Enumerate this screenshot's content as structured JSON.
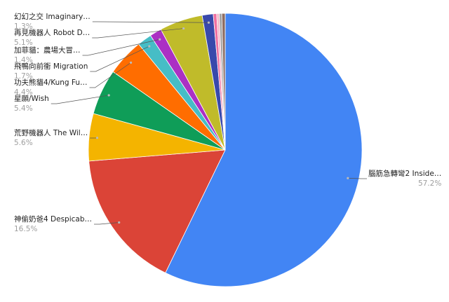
{
  "chart_data": {
    "type": "pie",
    "categories": [
      "腦筋急轉彎2 Inside…",
      "神偷奶爸4 Despicab…",
      "荒野機器人 The Wil…",
      "星願/Wish",
      "功夫熊貓4/Kung Fu…",
      "飛鴨向前衝 Migration",
      "加菲貓：農場大冒…",
      "再見機器人 Robot D…",
      "幻幻之交 Imaginary…",
      null,
      null,
      null,
      null
    ],
    "values": [
      57.2,
      16.5,
      5.6,
      5.4,
      4.4,
      1.7,
      1.4,
      5.1,
      1.3,
      0.4,
      0.3,
      0.3,
      0.4
    ],
    "value_labels": [
      "57.2%",
      "16.5%",
      "5.6%",
      "5.4%",
      "4.4%",
      "1.7%",
      "1.4%",
      "5.1%",
      "1.3%",
      null,
      null,
      null,
      null
    ],
    "colors": [
      "#4285f4",
      "#db4437",
      "#f4b400",
      "#0f9d58",
      "#ff6d00",
      "#46bdc6",
      "#ab30c4",
      "#c0bb2a",
      "#3949ab",
      "#ef6fa0",
      "#f4b6c8",
      "#9e9e9e",
      "#8d6e63"
    ]
  }
}
